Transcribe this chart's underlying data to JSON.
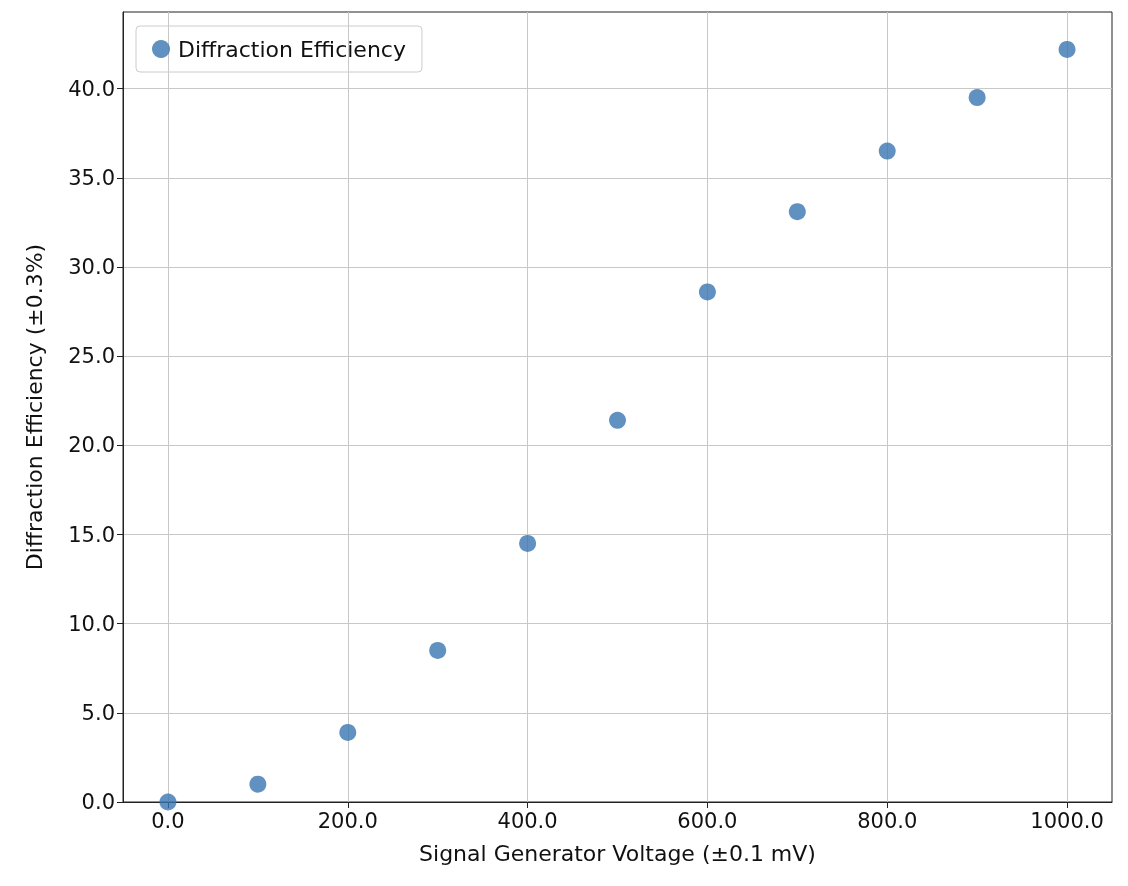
{
  "chart_data": {
    "type": "scatter",
    "xlabel": "Signal Generator Voltage (±0.1 mV)",
    "ylabel": "Diffraction Efficiency (±0.3%)",
    "x": [
      0,
      100,
      200,
      300,
      400,
      500,
      600,
      700,
      800,
      900,
      1000
    ],
    "series": [
      {
        "name": "Diffraction Efficiency",
        "color": "#3a75b0",
        "values": [
          0,
          1.0,
          3.9,
          8.5,
          14.5,
          21.4,
          28.6,
          33.1,
          36.5,
          39.5,
          42.2
        ]
      }
    ],
    "xlim": [
      -50,
      1050
    ],
    "xticks": [
      {
        "value": 0,
        "label": "0.0"
      },
      {
        "value": 200,
        "label": "200.0"
      },
      {
        "value": 400,
        "label": "400.0"
      },
      {
        "value": 600,
        "label": "600.0"
      },
      {
        "value": 800,
        "label": "800.0"
      },
      {
        "value": 1000,
        "label": "1000.0"
      }
    ],
    "ylim": [
      0,
      44.3
    ],
    "yticks": [
      {
        "value": 0,
        "label": "0.0"
      },
      {
        "value": 5,
        "label": "5.0"
      },
      {
        "value": 10,
        "label": "10.0"
      },
      {
        "value": 15,
        "label": "15.0"
      },
      {
        "value": 20,
        "label": "20.0"
      },
      {
        "value": 25,
        "label": "25.0"
      },
      {
        "value": 30,
        "label": "30.0"
      },
      {
        "value": 35,
        "label": "35.0"
      },
      {
        "value": 40,
        "label": "40.0"
      }
    ],
    "grid": true,
    "legend": "top left",
    "marker": "circle"
  }
}
